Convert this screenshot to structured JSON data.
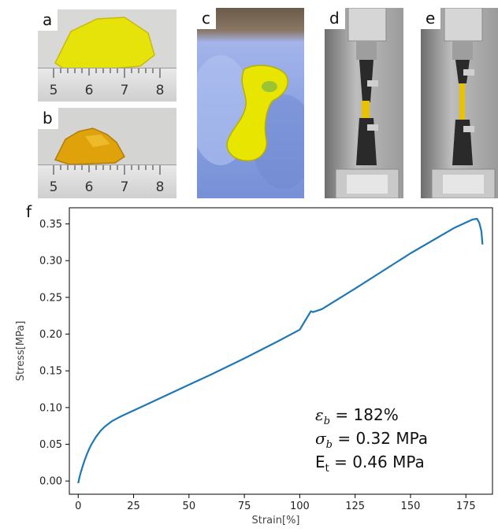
{
  "panels": {
    "a": {
      "letter": "a",
      "ruler_numbers": [
        "5",
        "6",
        "7",
        "8"
      ]
    },
    "b": {
      "letter": "b",
      "ruler_numbers": [
        "5",
        "6",
        "7",
        "8"
      ]
    },
    "c": {
      "letter": "c"
    },
    "d": {
      "letter": "d"
    },
    "e": {
      "letter": "e"
    },
    "f": {
      "letter": "f"
    }
  },
  "colors": {
    "line": "#1f77b4",
    "sample_yellow": "#e8e600",
    "sample_amber": "#e0a000",
    "glove": "#8fa8e8"
  },
  "annotations": {
    "eps_sym": "ε",
    "eps_sub": "b",
    "eps_value": " = 182%",
    "sigma_sym": "σ",
    "sigma_sub": "b",
    "sigma_value": " = 0.32 MPa",
    "e_sym": "E",
    "e_sub": "t",
    "e_value": " = 0.46 MPa"
  },
  "chart_data": {
    "type": "line",
    "xlabel": "Strain[%]",
    "ylabel": "Stress[MPa]",
    "xlim": [
      -4,
      187
    ],
    "ylim": [
      -0.018,
      0.372
    ],
    "xticks": [
      0,
      25,
      50,
      75,
      100,
      125,
      150,
      175
    ],
    "yticks": [
      0.0,
      0.05,
      0.1,
      0.15,
      0.2,
      0.25,
      0.3,
      0.35
    ],
    "grid": false,
    "series": [
      {
        "x": [
          0,
          0.5,
          1,
          2,
          3,
          4,
          5,
          6,
          8,
          10,
          12,
          15,
          18,
          20,
          25,
          30,
          40,
          50,
          60,
          75,
          90,
          100,
          105,
          106,
          110,
          125,
          150,
          170,
          178,
          180,
          181,
          182,
          182.5
        ],
        "y": [
          -0.003,
          0.004,
          0.01,
          0.02,
          0.029,
          0.037,
          0.044,
          0.05,
          0.06,
          0.068,
          0.074,
          0.081,
          0.086,
          0.089,
          0.096,
          0.103,
          0.117,
          0.131,
          0.145,
          0.167,
          0.19,
          0.206,
          0.231,
          0.23,
          0.234,
          0.262,
          0.31,
          0.345,
          0.356,
          0.357,
          0.352,
          0.34,
          0.322
        ]
      }
    ]
  }
}
